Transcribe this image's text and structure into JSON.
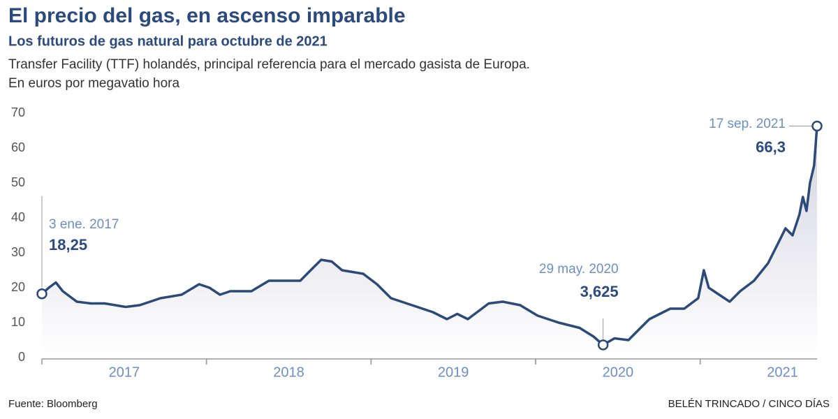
{
  "chart_data": {
    "type": "area-line",
    "title": "El precio del gas, en ascenso imparable",
    "subtitle": "Los futuros de gas natural para octubre de 2021",
    "description": [
      "Transfer Facility (TTF) holandés, principal referencia para el mercado gasista de Europa.",
      "En euros por megavatio hora"
    ],
    "source": "Fuente:  Bloomberg",
    "credit": "BELÉN TRINCADO / CINCO DÍAS",
    "xlim": [
      2017.0,
      2021.71
    ],
    "xticks": [
      {
        "value": 2017.5,
        "label": "2017"
      },
      {
        "value": 2018.5,
        "label": "2018"
      },
      {
        "value": 2019.5,
        "label": "2019"
      },
      {
        "value": 2020.5,
        "label": "2020"
      },
      {
        "value": 2021.5,
        "label": "2021"
      }
    ],
    "ylim": [
      0,
      70
    ],
    "yticks": [
      0,
      10,
      20,
      30,
      40,
      50,
      60,
      70
    ],
    "grid": false,
    "series": [
      {
        "name": "TTF",
        "color": "#2c4a78",
        "x": [
          2017.0,
          2017.042,
          2017.085,
          2017.127,
          2017.212,
          2017.297,
          2017.382,
          2017.509,
          2017.594,
          2017.721,
          2017.849,
          2017.955,
          2018.018,
          2018.082,
          2018.145,
          2018.273,
          2018.379,
          2018.443,
          2018.57,
          2018.633,
          2018.697,
          2018.761,
          2018.824,
          2018.952,
          2019.036,
          2019.121,
          2019.249,
          2019.376,
          2019.461,
          2019.524,
          2019.588,
          2019.673,
          2019.715,
          2019.8,
          2019.906,
          2020.012,
          2020.14,
          2020.267,
          2020.352,
          2020.41,
          2020.479,
          2020.564,
          2020.627,
          2020.691,
          2020.818,
          2020.903,
          2020.988,
          2021.022,
          2021.052,
          2021.115,
          2021.179,
          2021.243,
          2021.327,
          2021.412,
          2021.476,
          2021.518,
          2021.561,
          2021.603,
          2021.624,
          2021.646,
          2021.667,
          2021.692,
          2021.71
        ],
        "values": [
          18.25,
          20,
          21.5,
          19,
          16,
          15.5,
          15.5,
          14.5,
          15,
          17,
          18,
          21,
          20,
          18,
          19,
          19,
          22,
          22,
          22,
          25,
          28,
          27.5,
          25,
          24,
          21,
          17,
          15,
          13,
          11,
          12.5,
          11,
          14,
          15.5,
          16,
          15,
          12,
          10,
          8.5,
          6,
          3.625,
          5.5,
          5,
          8,
          11,
          14,
          14,
          17,
          25,
          20,
          18,
          16,
          19,
          22,
          27,
          33,
          37,
          35,
          41,
          46,
          42,
          50,
          55,
          66.3
        ]
      }
    ],
    "annotations": [
      {
        "x": 2017.0,
        "y": 18.25,
        "date": "3 ene. 2017",
        "label": "18,25"
      },
      {
        "x": 2020.41,
        "y": 3.625,
        "date": "29 may. 2020",
        "label": "3,625"
      },
      {
        "x": 2021.71,
        "y": 66.3,
        "date": "17 sep. 2021",
        "label": "66,3"
      }
    ]
  }
}
